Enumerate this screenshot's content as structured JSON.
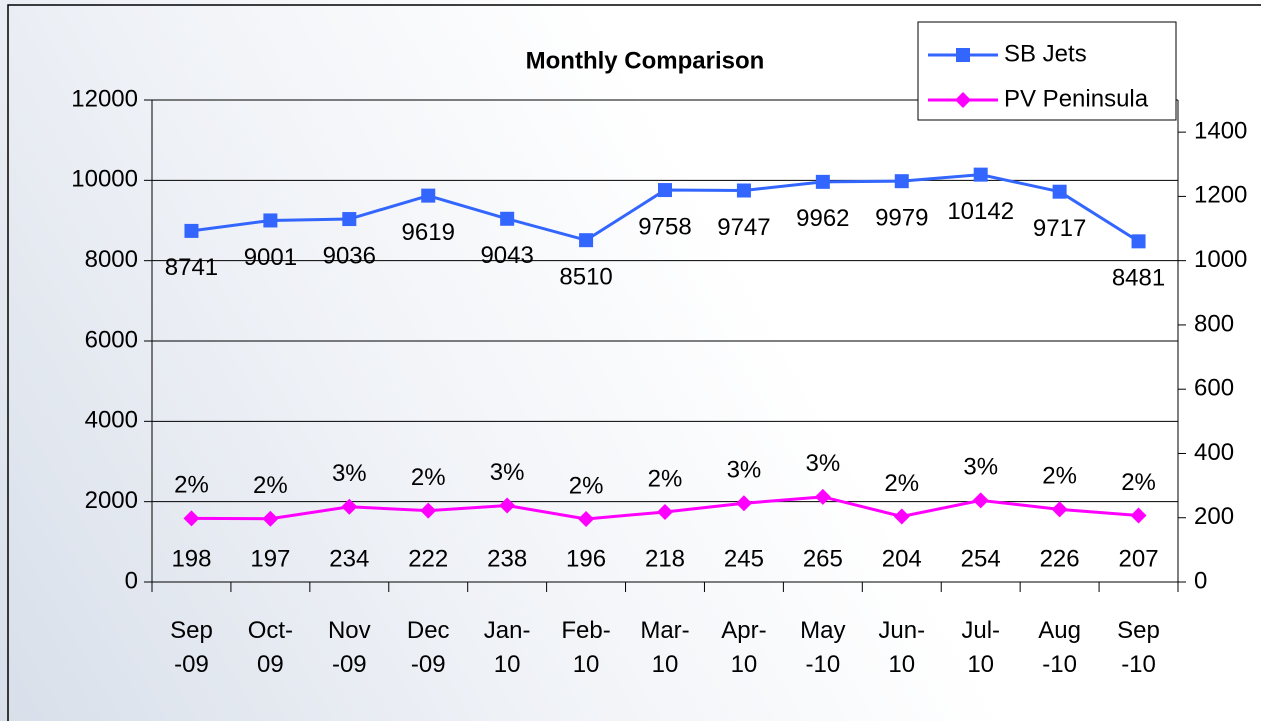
{
  "chart_data": {
    "type": "line",
    "title": "Monthly Comparison",
    "categories": [
      "Sep-09",
      "Oct-09",
      "Nov-09",
      "Dec-09",
      "Jan-10",
      "Feb-10",
      "Mar-10",
      "Apr-10",
      "May-10",
      "Jun-10",
      "Jul-10",
      "Aug-10",
      "Sep-10"
    ],
    "series": [
      {
        "name": "SB Jets",
        "color": "#3366ff",
        "marker": "square",
        "axis": "y",
        "values": [
          8741,
          9001,
          9036,
          9619,
          9043,
          8510,
          9758,
          9747,
          9962,
          9979,
          10142,
          9717,
          8481
        ]
      },
      {
        "name": "PV Peninsula",
        "color": "#ff00ff",
        "marker": "diamond",
        "axis": "y2",
        "values": [
          198,
          197,
          234,
          222,
          238,
          196,
          218,
          245,
          265,
          204,
          254,
          226,
          207
        ],
        "share_labels": [
          "2%",
          "2%",
          "3%",
          "2%",
          "3%",
          "2%",
          "2%",
          "3%",
          "3%",
          "2%",
          "3%",
          "2%",
          "2%"
        ]
      }
    ],
    "ylim": [
      0,
      12000
    ],
    "yticks": [
      0,
      2000,
      4000,
      6000,
      8000,
      10000,
      12000
    ],
    "y2lim": [
      0,
      1500
    ],
    "y2ticks": [
      0,
      200,
      400,
      600,
      800,
      1000,
      1200,
      1400
    ],
    "grid": true,
    "legend": "top-right"
  }
}
